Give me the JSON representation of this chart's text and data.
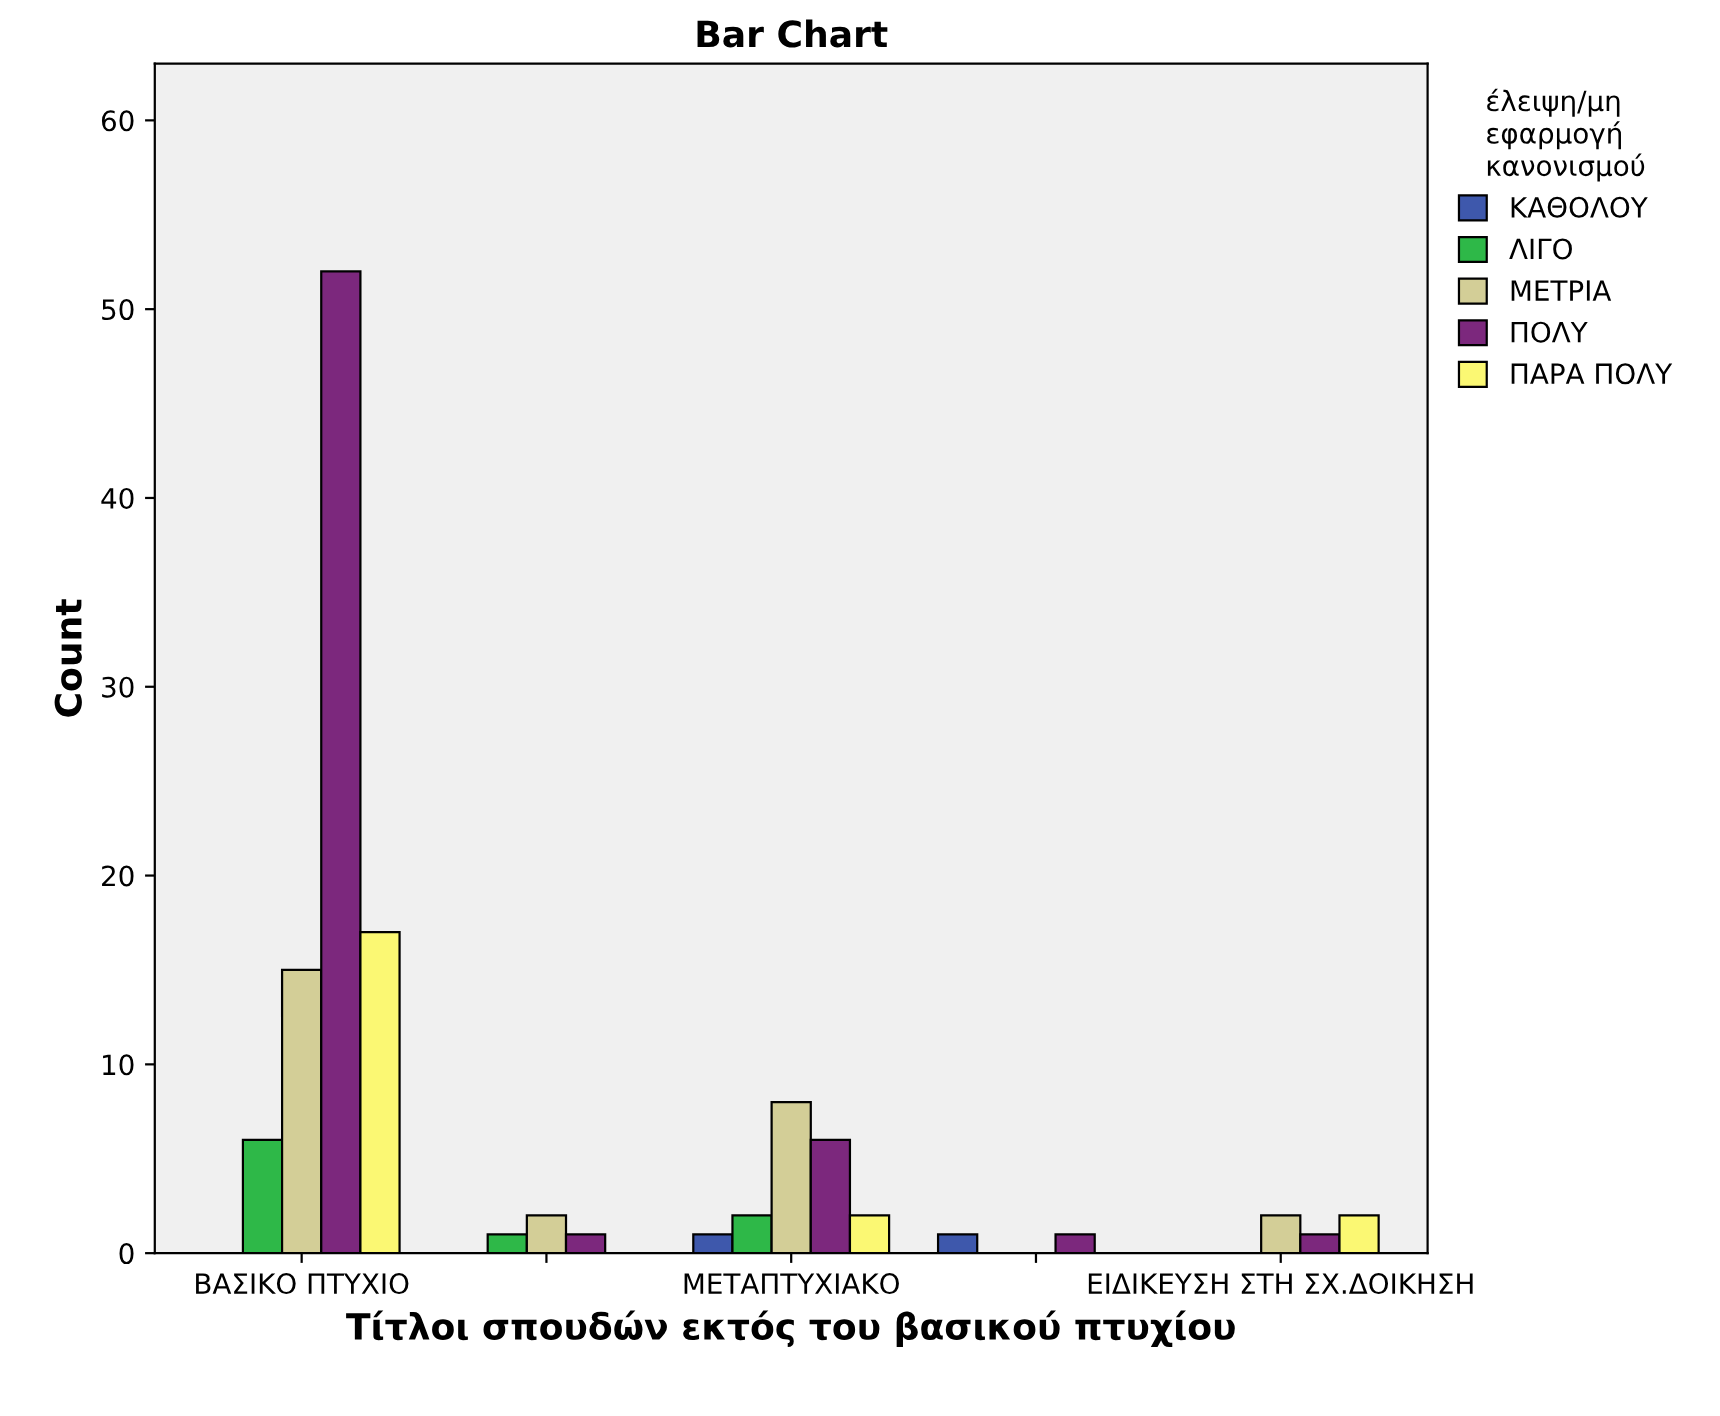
{
  "chart_data": {
    "type": "bar",
    "title": "Bar Chart",
    "xlabel": "Τίτλοι σπουδών εκτός του βασικού πτυχίου",
    "ylabel": "Count",
    "legend_title": "έλειψη/μη\nεφαρμογή\nκανονισμού",
    "categories": [
      "ΒΑΣΙΚΟ ΠΤΥΧΙΟ",
      null,
      "ΜΕΤΑΠΤΥΧΙΑΚΟ",
      null,
      "ΕΙΔΙΚΕΥΣΗ ΣΤΗ ΣΧ.ΔΟΙΚΗΣΗ"
    ],
    "series": [
      {
        "name": "ΚΑΘΟΛΟΥ",
        "color": "#3e58ac",
        "values": [
          null,
          null,
          1,
          1,
          null
        ]
      },
      {
        "name": "ΛΙΓΟ",
        "color": "#2eb848",
        "values": [
          6,
          1,
          2,
          null,
          null
        ]
      },
      {
        "name": "ΜΕΤΡΙΑ",
        "color": "#d3ce97",
        "values": [
          15,
          2,
          8,
          null,
          2
        ]
      },
      {
        "name": "ΠΟΛΥ",
        "color": "#7c287d",
        "values": [
          52,
          1,
          6,
          1,
          1
        ]
      },
      {
        "name": "ΠΑΡΑ ΠΟΛΥ",
        "color": "#fbf873",
        "values": [
          17,
          null,
          2,
          null,
          2
        ]
      }
    ],
    "ylim": [
      0,
      63
    ],
    "yticks": [
      0,
      10,
      20,
      30,
      40,
      50,
      60
    ],
    "grid": false,
    "legend": "right"
  }
}
